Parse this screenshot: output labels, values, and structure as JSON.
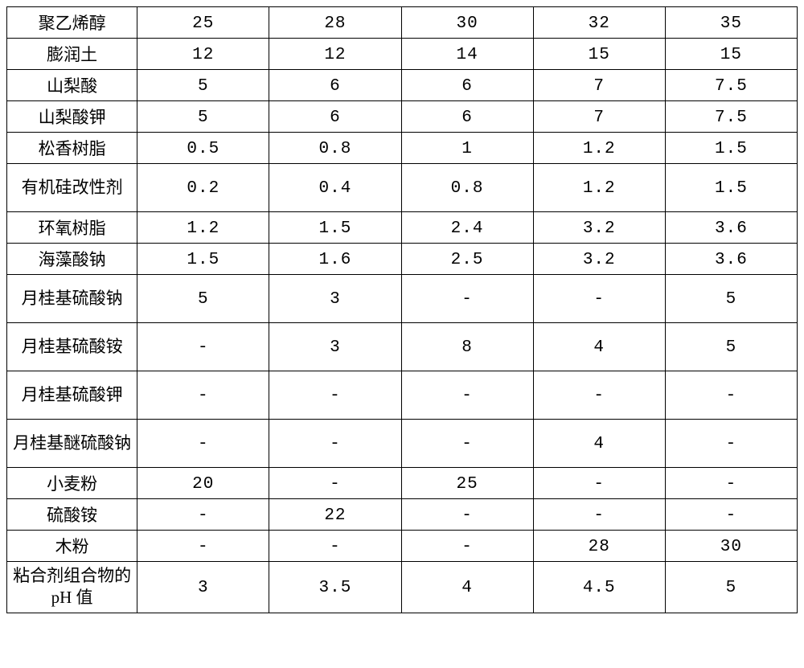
{
  "table": {
    "type": "table",
    "background_color": "#ffffff",
    "border_color": "#000000",
    "text_color": "#000000",
    "header_fontsize": 21,
    "cell_fontsize": 21,
    "column_widths_pct": [
      16.5,
      16.7,
      16.7,
      16.7,
      16.7,
      16.7
    ],
    "alignment": "center",
    "font_family_labels": "SimSun",
    "font_family_numbers": "Courier New",
    "columns_count": 6,
    "rows": [
      {
        "label": "聚乙烯醇",
        "multiline": false,
        "cells": [
          "25",
          "28",
          "30",
          "32",
          "35"
        ]
      },
      {
        "label": "膨润土",
        "multiline": false,
        "cells": [
          "12",
          "12",
          "14",
          "15",
          "15"
        ]
      },
      {
        "label": "山梨酸",
        "multiline": false,
        "cells": [
          "5",
          "6",
          "6",
          "7",
          "7.5"
        ]
      },
      {
        "label": "山梨酸钾",
        "multiline": false,
        "cells": [
          "5",
          "6",
          "6",
          "7",
          "7.5"
        ]
      },
      {
        "label": "松香树脂",
        "multiline": false,
        "cells": [
          "0.5",
          "0.8",
          "1",
          "1.2",
          "1.5"
        ]
      },
      {
        "label": "有机硅改性剂",
        "multiline": true,
        "cells": [
          "0.2",
          "0.4",
          "0.8",
          "1.2",
          "1.5"
        ]
      },
      {
        "label": "环氧树脂",
        "multiline": false,
        "cells": [
          "1.2",
          "1.5",
          "2.4",
          "3.2",
          "3.6"
        ]
      },
      {
        "label": "海藻酸钠",
        "multiline": false,
        "cells": [
          "1.5",
          "1.6",
          "2.5",
          "3.2",
          "3.6"
        ]
      },
      {
        "label": "月桂基硫酸钠",
        "multiline": true,
        "cells": [
          "5",
          "3",
          "-",
          "-",
          "5"
        ]
      },
      {
        "label": "月桂基硫酸铵",
        "multiline": true,
        "cells": [
          "-",
          "3",
          "8",
          "4",
          "5"
        ]
      },
      {
        "label": "月桂基硫酸钾",
        "multiline": true,
        "cells": [
          "-",
          "-",
          "-",
          "-",
          "-"
        ]
      },
      {
        "label": "月桂基醚硫酸钠",
        "multiline": true,
        "cells": [
          "-",
          "-",
          "-",
          "4",
          "-"
        ]
      },
      {
        "label": "小麦粉",
        "multiline": false,
        "cells": [
          "20",
          "-",
          "25",
          "-",
          "-"
        ]
      },
      {
        "label": "硫酸铵",
        "multiline": false,
        "cells": [
          "-",
          "22",
          "-",
          "-",
          "-"
        ]
      },
      {
        "label": "木粉",
        "multiline": false,
        "cells": [
          "-",
          "-",
          "-",
          "28",
          "30"
        ]
      },
      {
        "label": "粘合剂组合物的 pH 值",
        "multiline": true,
        "cells": [
          "3",
          "3.5",
          "4",
          "4.5",
          "5"
        ]
      }
    ]
  }
}
